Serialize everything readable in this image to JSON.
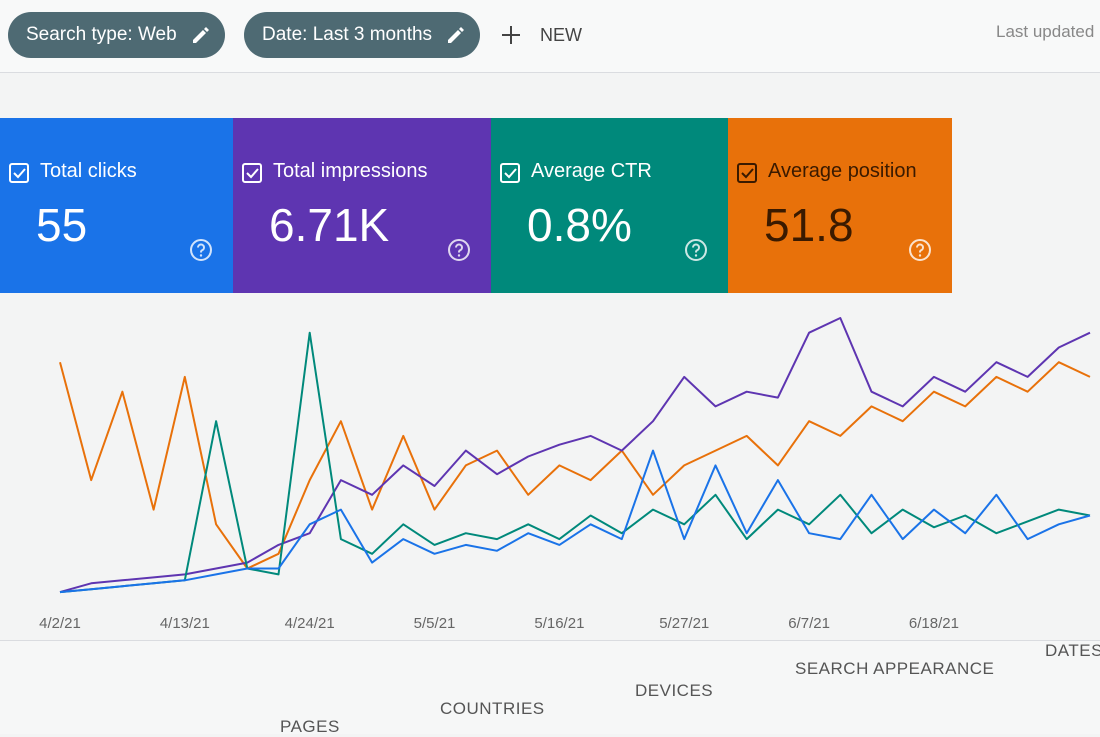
{
  "toolbar": {
    "chips": [
      "Search type: Web",
      "Date: Last 3 months"
    ],
    "new_button": "NEW",
    "last_updated": "Last updated"
  },
  "cards": [
    {
      "label": "Total clicks",
      "value": "55",
      "color": "#1a73e8"
    },
    {
      "label": "Total impressions",
      "value": "6.71K",
      "color": "#5e35b1"
    },
    {
      "label": "Average CTR",
      "value": "0.8%",
      "color": "#00897b"
    },
    {
      "label": "Average position",
      "value": "51.8",
      "color": "#e8710a"
    }
  ],
  "chart_data": {
    "type": "line",
    "categories": [
      "4/2/21",
      null,
      null,
      null,
      "4/13/21",
      null,
      null,
      null,
      "4/24/21",
      null,
      null,
      null,
      "5/5/21",
      null,
      null,
      null,
      "5/16/21",
      null,
      null,
      null,
      "5/27/21",
      null,
      null,
      null,
      "6/7/21",
      null,
      null,
      null,
      "6/18/21",
      null,
      null,
      null,
      null,
      null
    ],
    "series": [
      {
        "name": "Average position",
        "color": "#e8710a",
        "values": [
          80,
          40,
          70,
          30,
          75,
          25,
          10,
          15,
          40,
          60,
          30,
          55,
          30,
          45,
          50,
          35,
          45,
          40,
          50,
          35,
          45,
          50,
          55,
          45,
          60,
          55,
          65,
          60,
          70,
          65,
          75,
          70,
          80,
          75
        ]
      },
      {
        "name": "Total impressions",
        "color": "#5e35b1",
        "values": [
          2,
          5,
          6,
          7,
          8,
          10,
          12,
          18,
          22,
          40,
          35,
          45,
          38,
          50,
          42,
          48,
          52,
          55,
          50,
          60,
          75,
          65,
          70,
          68,
          90,
          95,
          70,
          65,
          75,
          70,
          80,
          75,
          85,
          90
        ]
      },
      {
        "name": "Average CTR",
        "color": "#00897b",
        "values": [
          2,
          3,
          4,
          5,
          6,
          60,
          10,
          8,
          90,
          20,
          15,
          25,
          18,
          22,
          20,
          25,
          20,
          28,
          22,
          30,
          25,
          35,
          20,
          30,
          25,
          35,
          22,
          30,
          24,
          28,
          22,
          26,
          30,
          28
        ]
      },
      {
        "name": "Total clicks",
        "color": "#1a73e8",
        "values": [
          2,
          3,
          4,
          5,
          6,
          8,
          10,
          10,
          25,
          30,
          12,
          20,
          15,
          18,
          16,
          22,
          18,
          25,
          20,
          50,
          20,
          45,
          22,
          40,
          22,
          20,
          35,
          20,
          30,
          22,
          35,
          20,
          25,
          28
        ]
      }
    ]
  },
  "tabs": [
    "PAGES",
    "COUNTRIES",
    "DEVICES",
    "SEARCH APPEARANCE",
    "DATES"
  ]
}
